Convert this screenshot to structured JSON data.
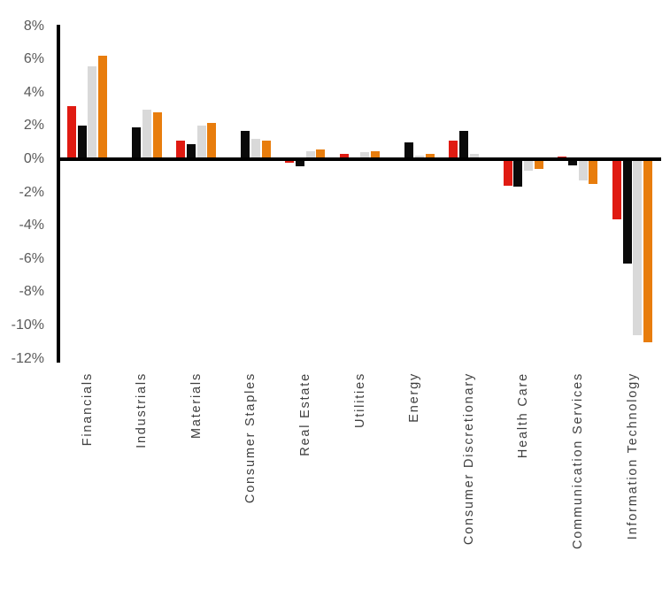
{
  "chart_data": {
    "type": "bar",
    "title": "",
    "xlabel": "",
    "ylabel": "",
    "ylim": [
      -12,
      8
    ],
    "grid": false,
    "legend": "none",
    "y_ticks": [
      {
        "label": "8%",
        "value": 8
      },
      {
        "label": "6%",
        "value": 6
      },
      {
        "label": "4%",
        "value": 4
      },
      {
        "label": "2%",
        "value": 2
      },
      {
        "label": "0%",
        "value": 0
      },
      {
        "label": "-2%",
        "value": -2
      },
      {
        "label": "-4%",
        "value": -4
      },
      {
        "label": "-6%",
        "value": -6
      },
      {
        "label": "-8%",
        "value": -8
      },
      {
        "label": "-10%",
        "value": -10
      },
      {
        "label": "-12%",
        "value": -12
      }
    ],
    "categories": [
      "Financials",
      "Industrials",
      "Materials",
      "Consumer Staples",
      "Real Estate",
      "Utilities",
      "Energy",
      "Consumer Discretionary",
      "Health Care",
      "Communication Services",
      "Information Technology"
    ],
    "series": [
      {
        "name": "series-red",
        "color": "#e01b12",
        "values": [
          3.2,
          0,
          1.1,
          0,
          -0.2,
          0.3,
          -0.1,
          1.1,
          -1.6,
          0.15,
          -3.6
        ]
      },
      {
        "name": "series-black",
        "color": "#0a0a0a",
        "values": [
          2.0,
          1.9,
          0.9,
          1.7,
          -0.4,
          0,
          1.0,
          1.7,
          -1.65,
          -0.35,
          -6.3
        ]
      },
      {
        "name": "series-gray",
        "color": "#d9d9d9",
        "values": [
          5.6,
          3.0,
          2.0,
          1.2,
          0.5,
          0.4,
          0.2,
          0.3,
          -0.7,
          -1.3,
          -10.6
        ]
      },
      {
        "name": "series-orange",
        "color": "#e87d0d",
        "values": [
          6.2,
          2.8,
          2.2,
          1.1,
          0.6,
          0.5,
          0.3,
          -0.1,
          -0.6,
          -1.5,
          -11.0
        ]
      }
    ]
  }
}
